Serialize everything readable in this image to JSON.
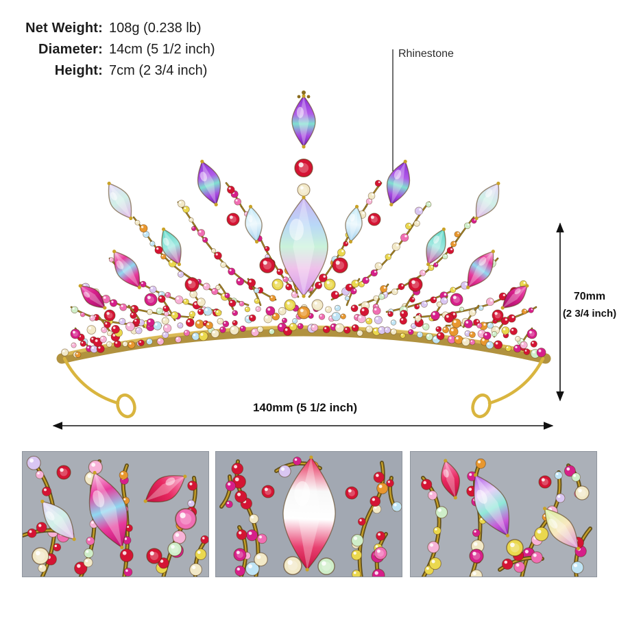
{
  "specs": {
    "rows": [
      {
        "label": "Net Weight:",
        "value": "108g (0.238 lb)"
      },
      {
        "label": "Diameter:",
        "value": "14cm (5 1/2 inch)"
      },
      {
        "label": "Height:",
        "value": "7cm (2 3/4 inch)"
      }
    ]
  },
  "callout": {
    "label": "Rhinestone"
  },
  "dimensions": {
    "height_value": "70mm",
    "height_alt": "(2 3/4 inch)",
    "width_value": "140mm (5 1/2 inch)"
  },
  "colors": {
    "gold": "#c9a227",
    "gold_dark": "#6e5514",
    "gold_bright": "#e3c35c",
    "gem_red": "#d41434",
    "gem_magenta": "#d61f8a",
    "gem_pink": "#f06eb4",
    "gem_pink_light": "#f7b3d8",
    "gem_purple": "#8b2fd6",
    "gem_yellow": "#ead84e",
    "gem_orange": "#e8972f",
    "ab_pale": "#f2e9c8",
    "ab_mint": "#cfeec9",
    "ab_lavender": "#d9c6f2",
    "ab_blue": "#bfe4f5",
    "text": "#1c1c1c",
    "arrow": "#111111",
    "thumb_bg": "#a6abb4"
  }
}
